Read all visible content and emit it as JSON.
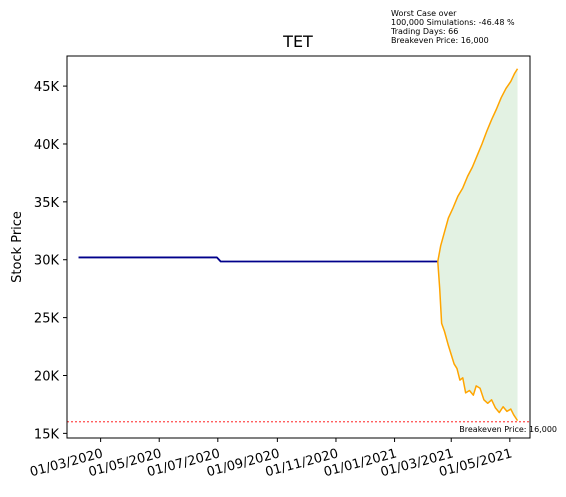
{
  "chart_data": {
    "type": "line",
    "title": "TET",
    "xlabel": "",
    "ylabel": "Stock Price",
    "ylim": [
      14600,
      47600
    ],
    "xlim": [
      "2020-01-26",
      "2021-05-22"
    ],
    "grid": false,
    "yticks": [
      {
        "value": 15000,
        "label": "15K"
      },
      {
        "value": 20000,
        "label": "20K"
      },
      {
        "value": 25000,
        "label": "25K"
      },
      {
        "value": 30000,
        "label": "30K"
      },
      {
        "value": 35000,
        "label": "35K"
      },
      {
        "value": 40000,
        "label": "40K"
      },
      {
        "value": 45000,
        "label": "45K"
      }
    ],
    "xticks": [
      {
        "value": "2020-03-01",
        "label": "01/03/2020"
      },
      {
        "value": "2020-05-01",
        "label": "01/05/2020"
      },
      {
        "value": "2020-07-01",
        "label": "01/07/2020"
      },
      {
        "value": "2020-09-01",
        "label": "01/09/2020"
      },
      {
        "value": "2020-11-01",
        "label": "01/11/2020"
      },
      {
        "value": "2021-01-01",
        "label": "01/01/2021"
      },
      {
        "value": "2021-03-01",
        "label": "01/03/2021"
      },
      {
        "value": "2021-05-01",
        "label": "01/05/2021"
      }
    ],
    "series": [
      {
        "role": "historical",
        "color": "#00008b",
        "points": [
          {
            "x": "2020-02-07",
            "y": 30200
          },
          {
            "x": "2020-06-30",
            "y": 30200
          },
          {
            "x": "2020-07-04",
            "y": 29850
          },
          {
            "x": "2021-02-15",
            "y": 29850
          }
        ]
      },
      {
        "role": "simulation-upper",
        "color": "#ffa500",
        "points": [
          {
            "x": "2021-02-15",
            "y": 29850
          },
          {
            "x": "2021-02-18",
            "y": 31200
          },
          {
            "x": "2021-02-22",
            "y": 32400
          },
          {
            "x": "2021-02-26",
            "y": 33600
          },
          {
            "x": "2021-03-03",
            "y": 34500
          },
          {
            "x": "2021-03-08",
            "y": 35500
          },
          {
            "x": "2021-03-13",
            "y": 36200
          },
          {
            "x": "2021-03-18",
            "y": 37200
          },
          {
            "x": "2021-03-23",
            "y": 38000
          },
          {
            "x": "2021-03-28",
            "y": 39000
          },
          {
            "x": "2021-04-02",
            "y": 40000
          },
          {
            "x": "2021-04-07",
            "y": 41100
          },
          {
            "x": "2021-04-12",
            "y": 42100
          },
          {
            "x": "2021-04-17",
            "y": 43000
          },
          {
            "x": "2021-04-22",
            "y": 44000
          },
          {
            "x": "2021-04-27",
            "y": 44800
          },
          {
            "x": "2021-05-02",
            "y": 45400
          },
          {
            "x": "2021-05-06",
            "y": 46100
          },
          {
            "x": "2021-05-09",
            "y": 46500
          }
        ]
      },
      {
        "role": "simulation-lower",
        "color": "#ffa500",
        "points": [
          {
            "x": "2021-02-15",
            "y": 29850
          },
          {
            "x": "2021-02-17",
            "y": 27500
          },
          {
            "x": "2021-02-19",
            "y": 24500
          },
          {
            "x": "2021-02-22",
            "y": 23800
          },
          {
            "x": "2021-02-26",
            "y": 22600
          },
          {
            "x": "2021-03-01",
            "y": 21800
          },
          {
            "x": "2021-03-04",
            "y": 21000
          },
          {
            "x": "2021-03-07",
            "y": 20600
          },
          {
            "x": "2021-03-10",
            "y": 19600
          },
          {
            "x": "2021-03-13",
            "y": 19800
          },
          {
            "x": "2021-03-16",
            "y": 18500
          },
          {
            "x": "2021-03-20",
            "y": 18700
          },
          {
            "x": "2021-03-24",
            "y": 18300
          },
          {
            "x": "2021-03-27",
            "y": 19100
          },
          {
            "x": "2021-03-31",
            "y": 18900
          },
          {
            "x": "2021-04-04",
            "y": 17900
          },
          {
            "x": "2021-04-08",
            "y": 17600
          },
          {
            "x": "2021-04-12",
            "y": 17900
          },
          {
            "x": "2021-04-16",
            "y": 17200
          },
          {
            "x": "2021-04-20",
            "y": 16800
          },
          {
            "x": "2021-04-24",
            "y": 17300
          },
          {
            "x": "2021-04-28",
            "y": 16900
          },
          {
            "x": "2021-05-02",
            "y": 17100
          },
          {
            "x": "2021-05-05",
            "y": 16600
          },
          {
            "x": "2021-05-09",
            "y": 16100
          }
        ]
      }
    ],
    "fill": {
      "color": "#c8e6c8",
      "opacity": 0.5
    },
    "breakeven": {
      "value": 16000,
      "color": "#ff0000",
      "label": "Breakeven Price: 16,000"
    },
    "annotation": [
      "Worst Case over",
      "100,000 Simulations: -46.48 %",
      "Trading Days: 66",
      "Breakeven Price: 16,000"
    ]
  }
}
